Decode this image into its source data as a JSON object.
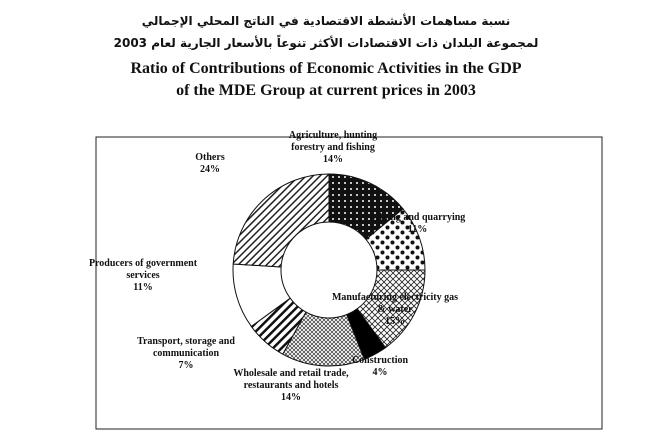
{
  "chart_data": {
    "type": "pie",
    "title_ar": [
      "نسبة مساهمات الأنشطة الاقتصادية في الناتج المحلي الإجمالي",
      "لمجموعة البلدان ذات الاقتصادات الأكثر تنوعاً بالأسعار الجارية لعام 2003"
    ],
    "title": [
      "Ratio of Contributions of Economic Activities in the GDP",
      "of the MDE Group at current prices in 2003"
    ],
    "categories": [
      "Agriculture, hunting forestry and fishing",
      "Mining and quarrying",
      "Manufacturing electricity gas & water",
      "Construction",
      "Wholesale and retail trade, restaurants and hotels",
      "Transport, storage and communication",
      "Producers of government services",
      "Others"
    ],
    "values": [
      14,
      11,
      15,
      4,
      14,
      7,
      11,
      24
    ],
    "value_labels": [
      "14%",
      "11%",
      "15%",
      "4%",
      "14%",
      "7%",
      "11%",
      "24%"
    ],
    "donut": true
  }
}
